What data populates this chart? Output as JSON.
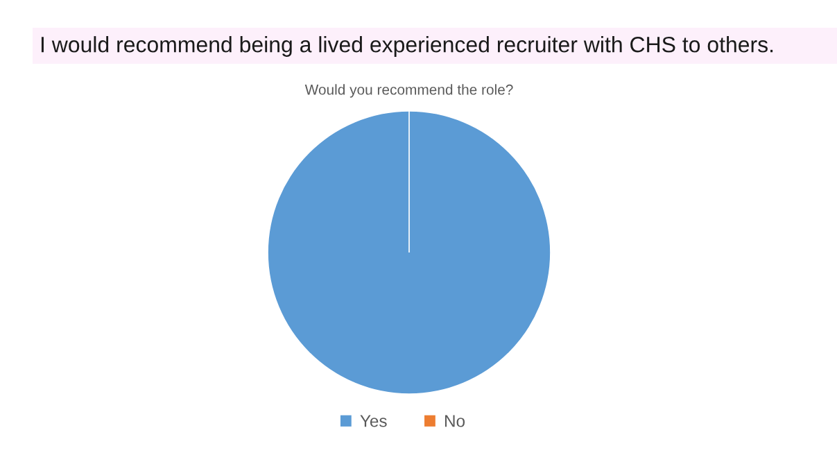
{
  "chart_data": {
    "type": "pie",
    "title": "I would recommend being a lived experienced recruiter with CHS to others.",
    "subtitle": "Would you recommend the role?",
    "categories": [
      "Yes",
      "No"
    ],
    "values": [
      100,
      0
    ],
    "colors": [
      "#5b9bd5",
      "#ed7d31"
    ],
    "legend": "bottom"
  }
}
